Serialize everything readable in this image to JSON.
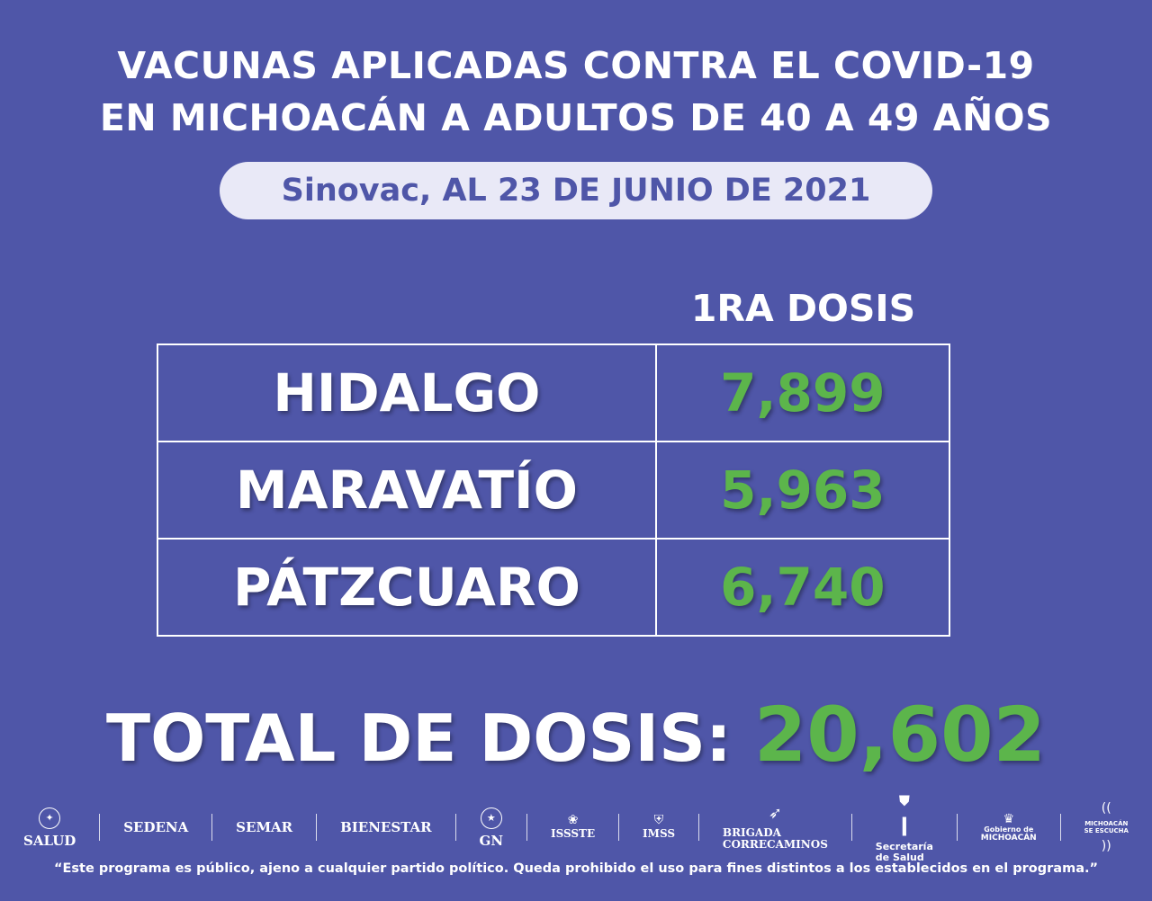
{
  "title": {
    "line1": "VACUNAS APLICADAS CONTRA EL COVID-19",
    "line2": "EN MICHOACÁN A ADULTOS DE 40 A 49 AÑOS"
  },
  "subtitle": "Sinovac, AL 23 DE JUNIO DE 2021",
  "table": {
    "column_header": "1RA DOSIS",
    "rows": [
      {
        "municipio": "HIDALGO",
        "dosis": "7,899"
      },
      {
        "municipio": "MARAVATÍO",
        "dosis": "5,963"
      },
      {
        "municipio": "PÁTZCUARO",
        "dosis": "6,740"
      }
    ]
  },
  "total": {
    "label": "TOTAL DE DOSIS:",
    "value": "20,602"
  },
  "logos": {
    "salud": "SALUD",
    "sedena": "SEDENA",
    "semar": "SEMAR",
    "bienestar": "BIENESTAR",
    "gn": "GN",
    "issste": "ISSSTE",
    "imss": "IMSS",
    "brigada_line1": "BRIGADA",
    "brigada_line2": "CORRECAMINOS",
    "secretaria_line1": "Secretaría",
    "secretaria_line2": "de Salud",
    "gobierno_line1": "Gobierno de",
    "gobierno_line2": "MICHOACÁN",
    "escucha_line1": "MICHOACÁN",
    "escucha_line2": "SE ESCUCHA"
  },
  "footer": "“Este programa es público, ajeno a cualquier partido político. Queda prohibido el uso para fines distintos a los establecidos en el programa.”",
  "colors": {
    "background": "#4f56a8",
    "accent_green": "#5cb54b",
    "pill": "#e9e9f7"
  }
}
